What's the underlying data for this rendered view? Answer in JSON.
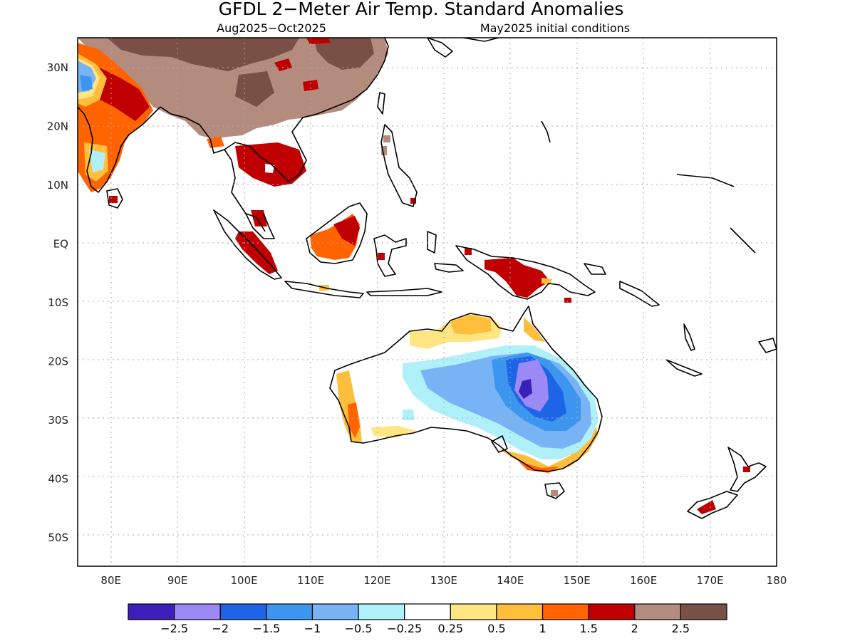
{
  "header": {
    "title": "GFDL 2−Meter Air Temp. Standard Anomalies",
    "period": "Aug2025−Oct2025",
    "init": "May2025 initial conditions"
  },
  "map": {
    "lon_range": [
      75,
      180
    ],
    "lat_range": [
      -55,
      35
    ],
    "lon_ticks": [
      {
        "v": 80,
        "label": "80E"
      },
      {
        "v": 90,
        "label": "90E"
      },
      {
        "v": 100,
        "label": "100E"
      },
      {
        "v": 110,
        "label": "110E"
      },
      {
        "v": 120,
        "label": "120E"
      },
      {
        "v": 130,
        "label": "130E"
      },
      {
        "v": 140,
        "label": "140E"
      },
      {
        "v": 150,
        "label": "150E"
      },
      {
        "v": 160,
        "label": "160E"
      },
      {
        "v": 170,
        "label": "170E"
      },
      {
        "v": 180,
        "label": "180"
      }
    ],
    "lat_ticks": [
      {
        "v": 30,
        "label": "30N"
      },
      {
        "v": 20,
        "label": "20N"
      },
      {
        "v": 10,
        "label": "10N"
      },
      {
        "v": 0,
        "label": "EQ"
      },
      {
        "v": -10,
        "label": "10S"
      },
      {
        "v": -20,
        "label": "20S"
      },
      {
        "v": -30,
        "label": "30S"
      },
      {
        "v": -40,
        "label": "40S"
      },
      {
        "v": -50,
        "label": "50S"
      }
    ],
    "grid": "dotted"
  },
  "colorbar": {
    "colors": [
      "#3a20b8",
      "#9b8af5",
      "#1e64e6",
      "#3c96f0",
      "#78b4f5",
      "#b0f0f8",
      "#ffffff",
      "#ffe682",
      "#ffbe3c",
      "#ff6400",
      "#c00000",
      "#b48c7d",
      "#785046"
    ],
    "labels": [
      "−2.5",
      "−2",
      "−1.5",
      "−1",
      "−0.5",
      "−0.25",
      "0.25",
      "0.5",
      "1",
      "1.5",
      "2",
      "2.5"
    ]
  },
  "legend": [
    {
      "color": "#3a20b8",
      "range": "< −2.5"
    },
    {
      "color": "#785046",
      "range": "> 2.5"
    }
  ]
}
